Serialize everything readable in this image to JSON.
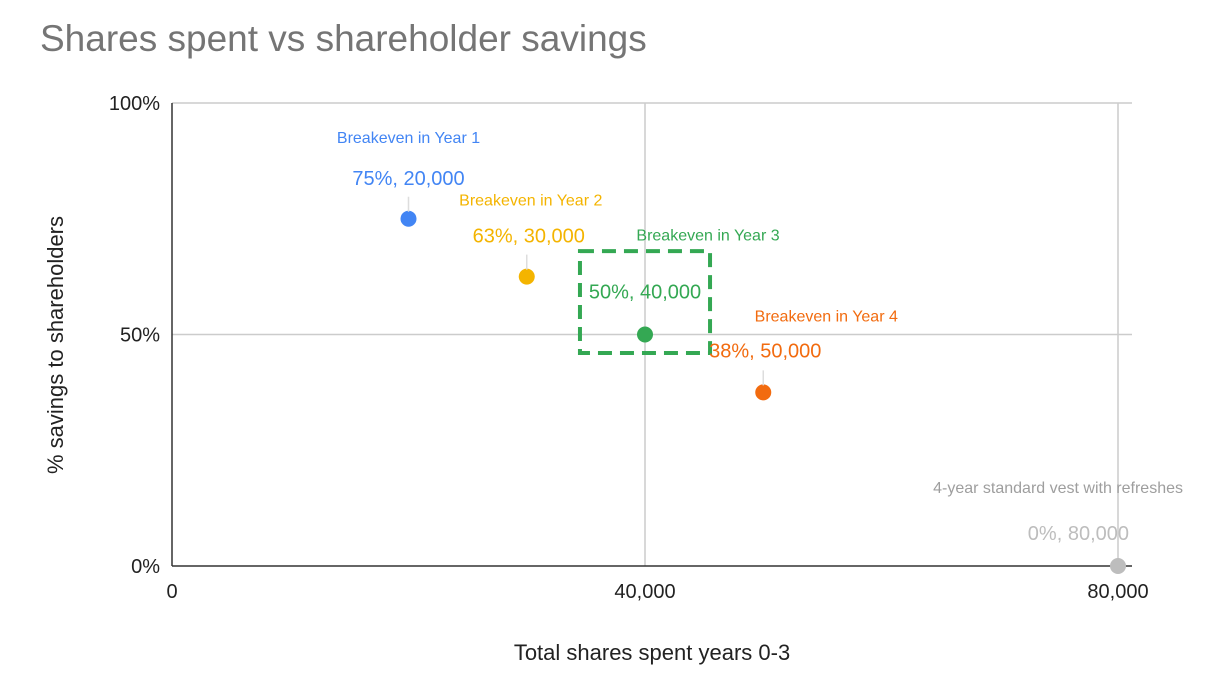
{
  "chart_data": {
    "type": "scatter",
    "title": "Shares spent vs shareholder savings",
    "xlabel": "Total shares spent years 0-3",
    "ylabel": "% savings to shareholders",
    "xlim": [
      0,
      80000
    ],
    "ylim": [
      0,
      100
    ],
    "x_ticks": [
      {
        "value": 0,
        "label": "0"
      },
      {
        "value": 40000,
        "label": "40,000"
      },
      {
        "value": 80000,
        "label": "80,000"
      }
    ],
    "y_ticks": [
      {
        "value": 0,
        "label": "0%"
      },
      {
        "value": 50,
        "label": "50%"
      },
      {
        "value": 100,
        "label": "100%"
      }
    ],
    "grid": true,
    "points": [
      {
        "x": 20000,
        "y": 75,
        "annotation": "Breakeven in Year 1",
        "label": "75%, 20,000",
        "color": "#4285F4"
      },
      {
        "x": 30000,
        "y": 62.5,
        "annotation": "Breakeven in Year 2",
        "label": "63%, 30,000",
        "color": "#F4B400"
      },
      {
        "x": 40000,
        "y": 50,
        "annotation": "Breakeven in Year 3",
        "label": "50%, 40,000",
        "color": "#34A853"
      },
      {
        "x": 50000,
        "y": 37.5,
        "annotation": "Breakeven in Year 4",
        "label": "38%, 50,000",
        "color": "#F26B0F"
      },
      {
        "x": 80000,
        "y": 0,
        "annotation": "4-year standard vest with refreshes",
        "label": "0%, 80,000",
        "color": "#BDBDBD"
      }
    ],
    "highlight": {
      "x_range": [
        34500,
        45500
      ],
      "y_range": [
        46,
        68
      ],
      "color": "#34A853",
      "style": "dashed",
      "around_point": "Breakeven in Year 3"
    }
  }
}
